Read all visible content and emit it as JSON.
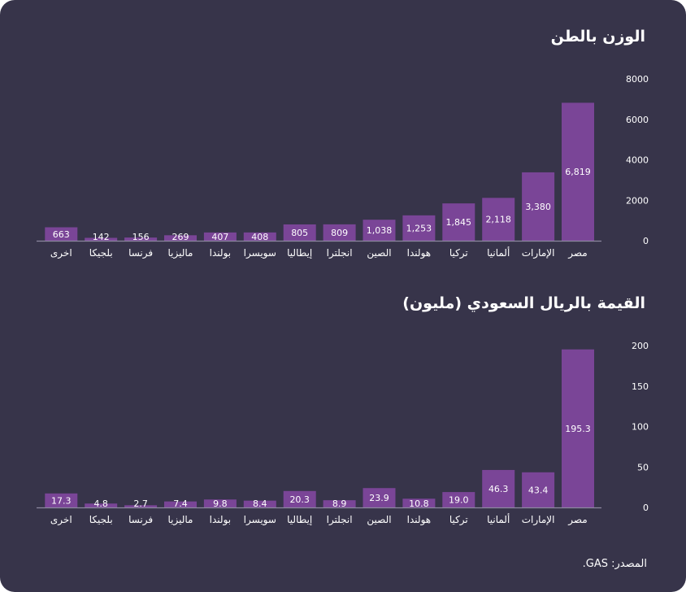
{
  "colors": {
    "background": "#37344a",
    "bar": "#7a4597",
    "axis": "#8c88a0",
    "text": "#ffffff"
  },
  "chart_data": [
    {
      "type": "bar",
      "title": "الوزن بالطن",
      "categories": [
        "مصر",
        "الإمارات",
        "ألمانيا",
        "تركيا",
        "هولندا",
        "الصين",
        "انجلترا",
        "إيطاليا",
        "سويسرا",
        "بولندا",
        "ماليزيا",
        "فرنسا",
        "بلجيكا",
        "اخرى"
      ],
      "values": [
        6819,
        3380,
        2118,
        1845,
        1253,
        1038,
        809,
        805,
        408,
        407,
        269,
        156,
        142,
        663
      ],
      "value_labels": [
        "6,819",
        "3,380",
        "2,118",
        "1,845",
        "1,253",
        "1,038",
        "809",
        "805",
        "408",
        "407",
        "269",
        "156",
        "142",
        "663"
      ],
      "yticks": [
        0,
        2000,
        4000,
        6000,
        8000
      ],
      "ylim": [
        0,
        8000
      ],
      "xlabel": "",
      "ylabel": "",
      "axis_side": "right",
      "grid": false,
      "legend": "none"
    },
    {
      "type": "bar",
      "title": "القيمة بالريال السعودي (مليون)",
      "categories": [
        "مصر",
        "الإمارات",
        "ألمانيا",
        "تركيا",
        "هولندا",
        "الصين",
        "انجلترا",
        "إيطاليا",
        "سويسرا",
        "بولندا",
        "ماليزيا",
        "فرنسا",
        "بلجيكا",
        "اخرى"
      ],
      "values": [
        195.3,
        43.4,
        46.3,
        19.0,
        10.8,
        23.9,
        8.9,
        20.3,
        8.4,
        9.8,
        7.4,
        2.7,
        4.8,
        17.3
      ],
      "value_labels": [
        "195.3",
        "43.4",
        "46.3",
        "19.0",
        "10.8",
        "23.9",
        "8.9",
        "20.3",
        "8.4",
        "9.8",
        "7.4",
        "2.7",
        "4.8",
        "17.3"
      ],
      "yticks": [
        0,
        50,
        100,
        150,
        200
      ],
      "ylim": [
        0,
        200
      ],
      "xlabel": "",
      "ylabel": "",
      "axis_side": "right",
      "grid": false,
      "legend": "none"
    }
  ],
  "source": "المصدر: GAS."
}
